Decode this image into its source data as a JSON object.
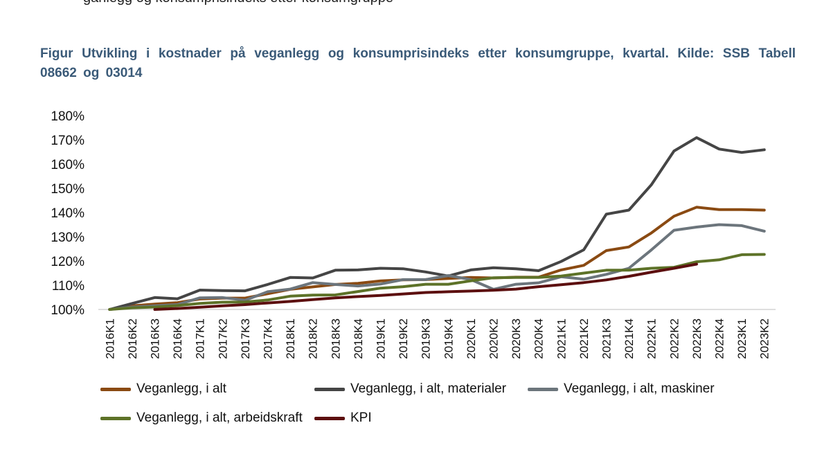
{
  "header_fragment": "ganlegg og konsumprisindeks etter konsumgruppe",
  "title": "Figur Utvikling i kostnader på veganlegg og konsumprisindeks etter konsumgruppe, kvartal. Kilde: SSB Tabell 08662 og 03014",
  "chart_data": {
    "type": "line",
    "title": "Figur Utvikling i kostnader på veganlegg og konsumprisindeks etter konsumgruppe, kvartal. Kilde: SSB Tabell 08662 og 03014",
    "xlabel": "",
    "ylabel": "",
    "ylim": [
      100,
      180
    ],
    "yticks": [
      "100%",
      "110%",
      "120%",
      "130%",
      "140%",
      "150%",
      "160%",
      "170%",
      "180%"
    ],
    "grid": false,
    "legend_position": "bottom",
    "categories": [
      "2016K1",
      "2016K2",
      "2016K3",
      "2016K4",
      "2017K1",
      "2017K2",
      "2017K3",
      "2017K4",
      "2018K1",
      "2018K2",
      "2018K3",
      "2018K4",
      "2019K1",
      "2019K2",
      "2019K3",
      "2019K4",
      "2020K1",
      "2020K2",
      "2020K3",
      "2020K4",
      "2021K1",
      "2021K2",
      "2021K3",
      "2021K4",
      "2022K1",
      "2022K2",
      "2022K3",
      "2022K4",
      "2023K1",
      "2023K2"
    ],
    "series": [
      {
        "name": "Veganlegg, i alt",
        "color": "#8a4a12",
        "values": [
          100,
          101.5,
          102.2,
          102.8,
          104.3,
          104.7,
          104.7,
          106.5,
          108.3,
          109.3,
          110.3,
          110.8,
          111.8,
          112.2,
          112.3,
          112.8,
          113.2,
          113.0,
          113.3,
          113.3,
          116.3,
          118.2,
          124.3,
          125.8,
          131.6,
          138.5,
          142.2,
          141.2,
          141.2,
          141.0
        ]
      },
      {
        "name": "Veganlegg, i alt, materialer",
        "color": "#454545",
        "values": [
          100,
          102.5,
          104.9,
          104.4,
          108.0,
          107.8,
          107.7,
          110.3,
          113.2,
          113.0,
          116.2,
          116.3,
          117.0,
          116.8,
          115.5,
          113.8,
          116.3,
          117.2,
          116.8,
          116.0,
          119.8,
          124.6,
          139.3,
          141.0,
          151.5,
          165.4,
          170.9,
          166.2,
          164.8,
          165.9
        ]
      },
      {
        "name": "Veganlegg, i alt, maskiner",
        "color": "#6c757c",
        "values": [
          100,
          101.0,
          101.5,
          102.0,
          104.8,
          104.9,
          103.8,
          107.3,
          108.4,
          111.1,
          110.3,
          109.7,
          110.5,
          112.3,
          112.3,
          114.0,
          112.3,
          108.3,
          110.4,
          111.0,
          113.5,
          112.5,
          114.5,
          117.0,
          124.6,
          132.7,
          134.0,
          135.0,
          134.6,
          132.3
        ]
      },
      {
        "name": "Veganlegg, i alt, arbeidskraft",
        "color": "#5d7228",
        "values": [
          100,
          100.7,
          101.0,
          101.6,
          102.5,
          103.0,
          103.1,
          103.9,
          105.5,
          105.9,
          106.0,
          107.4,
          108.8,
          109.4,
          110.4,
          110.4,
          111.8,
          113.1,
          113.2,
          113.2,
          113.8,
          115.0,
          116.2,
          116.2,
          117.0,
          117.4,
          119.7,
          120.5,
          122.6,
          122.7
        ]
      },
      {
        "name": "KPI",
        "color": "#5c0f0f",
        "values": [
          null,
          null,
          100.0,
          100.4,
          100.9,
          101.5,
          102.0,
          102.7,
          103.3,
          104.1,
          104.8,
          105.3,
          105.8,
          106.4,
          107.0,
          107.3,
          107.6,
          107.9,
          108.4,
          109.4,
          110.2,
          111.1,
          112.2,
          113.7,
          115.4,
          117.0,
          118.7,
          null,
          null,
          null
        ]
      }
    ]
  }
}
